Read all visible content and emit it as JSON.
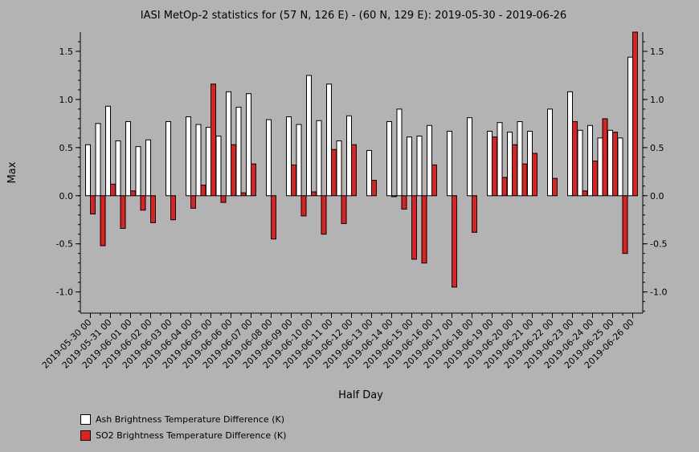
{
  "chart_data": {
    "type": "bar",
    "title": "IASI MetOp-2 statistics for (57 N, 126 E) - (60 N, 129 E): 2019-05-30 - 2019-06-26",
    "xlabel": "Half Day",
    "ylabel": "Max",
    "ylim": [
      -1.22,
      1.7
    ],
    "yticks": [
      "-1.0",
      "-0.5",
      "0.0",
      "0.5",
      "1.0",
      "1.5"
    ],
    "ytick_values": [
      -1.0,
      -0.5,
      0.0,
      0.5,
      1.0,
      1.5
    ],
    "grid": false,
    "legend_position": "bottom-left",
    "tick_labels": [
      "2019-05-30 00",
      "2019-05-31 00",
      "2019-06-01 00",
      "2019-06-02 00",
      "2019-06-03 00",
      "2019-06-04 00",
      "2019-06-05 00",
      "2019-06-06 00",
      "2019-06-07 00",
      "2019-06-08 00",
      "2019-06-09 00",
      "2019-06-10 00",
      "2019-06-11 00",
      "2019-06-12 00",
      "2019-06-13 00",
      "2019-06-14 00",
      "2019-06-15 00",
      "2019-06-16 00",
      "2019-06-17 00",
      "2019-06-18 00",
      "2019-06-19 00",
      "2019-06-20 00",
      "2019-06-21 00",
      "2019-06-22 00",
      "2019-06-23 00",
      "2019-06-24 00",
      "2019-06-25 00",
      "2019-06-26 00"
    ],
    "series": [
      {
        "name": "Ash Brightness Temperature Difference (K)",
        "color": "#ffffff",
        "values": [
          0.53,
          0.75,
          0.93,
          0.57,
          0.77,
          0.51,
          0.58,
          null,
          0.77,
          null,
          0.82,
          0.74,
          0.71,
          0.62,
          1.08,
          0.92,
          1.06,
          null,
          0.79,
          null,
          0.82,
          0.74,
          1.25,
          0.78,
          1.16,
          0.57,
          0.83,
          null,
          0.47,
          null,
          0.77,
          0.9,
          0.61,
          0.62,
          0.73,
          null,
          0.67,
          null,
          0.81,
          null,
          0.67,
          0.76,
          0.66,
          0.77,
          0.67,
          null,
          0.9,
          null,
          1.08,
          0.68,
          0.73,
          0.6,
          0.68,
          0.6,
          1.44
        ]
      },
      {
        "name": "SO2 Brightness Temperature Difference (K)",
        "color": "#dd2222",
        "values": [
          -0.19,
          -0.52,
          0.12,
          -0.34,
          0.05,
          -0.15,
          -0.28,
          null,
          -0.25,
          null,
          -0.13,
          0.11,
          1.16,
          -0.07,
          0.53,
          0.03,
          0.33,
          null,
          -0.45,
          null,
          0.32,
          -0.21,
          0.04,
          -0.4,
          0.48,
          -0.29,
          0.53,
          null,
          0.16,
          null,
          -0.01,
          -0.14,
          -0.66,
          -0.7,
          0.32,
          null,
          -0.95,
          null,
          -0.38,
          null,
          0.61,
          0.19,
          0.53,
          0.33,
          0.44,
          null,
          0.18,
          null,
          0.77,
          0.05,
          0.36,
          0.8,
          0.66,
          -0.6,
          1.7
        ]
      }
    ]
  }
}
